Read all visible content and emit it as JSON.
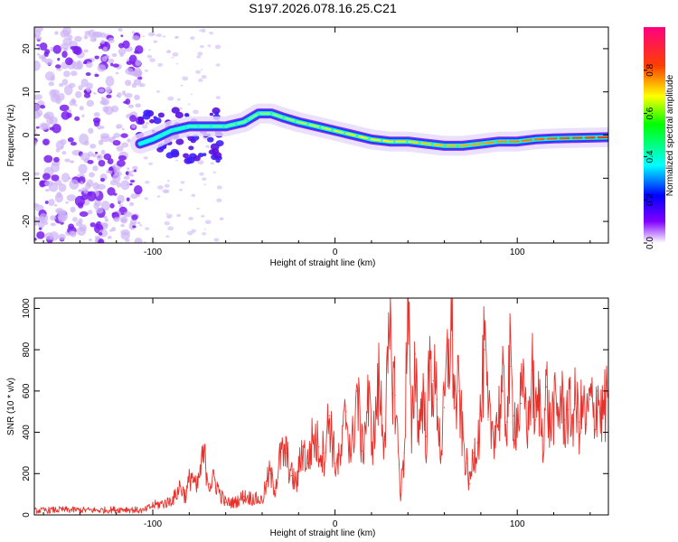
{
  "chart_data": [
    {
      "type": "heatmap",
      "title": "S197.2026.078.16.25.C21",
      "xlabel": "Height of straight line (km)",
      "ylabel": "Frequency (Hz)",
      "xlim": [
        -165,
        150
      ],
      "ylim": [
        -25,
        25
      ],
      "x_ticks": [
        -100,
        0,
        100
      ],
      "x_tick_labels": [
        "-100",
        "0",
        "100"
      ],
      "y_ticks": [
        -20,
        -10,
        0,
        10,
        20
      ],
      "y_tick_labels": [
        "-20",
        "-10",
        "0",
        "10",
        "20"
      ],
      "noise_region_x": [
        -165,
        -107
      ],
      "noisy_region_x": [
        -107,
        -62
      ],
      "ridge": [
        {
          "x": -107,
          "y": -2
        },
        {
          "x": -100,
          "y": -1
        },
        {
          "x": -90,
          "y": 1
        },
        {
          "x": -80,
          "y": 2
        },
        {
          "x": -70,
          "y": 2
        },
        {
          "x": -60,
          "y": 2
        },
        {
          "x": -50,
          "y": 3
        },
        {
          "x": -42,
          "y": 5
        },
        {
          "x": -35,
          "y": 5
        },
        {
          "x": -28,
          "y": 4
        },
        {
          "x": -20,
          "y": 3
        },
        {
          "x": -10,
          "y": 2
        },
        {
          "x": 0,
          "y": 1
        },
        {
          "x": 10,
          "y": 0
        },
        {
          "x": 20,
          "y": -1
        },
        {
          "x": 30,
          "y": -1.5
        },
        {
          "x": 40,
          "y": -1.5
        },
        {
          "x": 50,
          "y": -2
        },
        {
          "x": 60,
          "y": -2.5
        },
        {
          "x": 70,
          "y": -2.5
        },
        {
          "x": 80,
          "y": -2
        },
        {
          "x": 90,
          "y": -1.5
        },
        {
          "x": 100,
          "y": -1.5
        },
        {
          "x": 110,
          "y": -1
        },
        {
          "x": 120,
          "y": -0.8
        },
        {
          "x": 130,
          "y": -0.7
        },
        {
          "x": 140,
          "y": -0.6
        },
        {
          "x": 150,
          "y": -0.5
        }
      ],
      "colorbar": {
        "label": "Normalized spectral amplitude",
        "range": [
          0,
          1
        ],
        "ticks": [
          0,
          0.2,
          0.4,
          0.6,
          0.8
        ],
        "tick_labels": [
          "0.0",
          "0.2",
          "0.4",
          "0.6",
          "0.8"
        ]
      }
    },
    {
      "type": "line",
      "xlabel": "Height of straight line (km)",
      "ylabel": "SNR (10 * v/v)",
      "xlim": [
        -165,
        150
      ],
      "ylim": [
        0,
        1050
      ],
      "x_ticks": [
        -100,
        0,
        100
      ],
      "x_tick_labels": [
        "-100",
        "0",
        "100"
      ],
      "y_ticks": [
        0,
        200,
        400,
        600,
        800,
        1000
      ],
      "y_tick_labels": [
        "0",
        "200",
        "400",
        "600",
        "800",
        "1000"
      ],
      "line_color": "#e8302a",
      "series": [
        {
          "name": "SNR",
          "x": [
            -165,
            -150,
            -130,
            -115,
            -105,
            -100,
            -92,
            -88,
            -85,
            -82,
            -79,
            -76,
            -72,
            -69,
            -66,
            -63,
            -60,
            -55,
            -50,
            -45,
            -40,
            -36,
            -33,
            -30,
            -27,
            -24,
            -21,
            -18,
            -15,
            -12,
            -9,
            -6,
            -3,
            0,
            3,
            6,
            9,
            12,
            15,
            18,
            21,
            24,
            27,
            30,
            33,
            36,
            38,
            40,
            42,
            44,
            46,
            48,
            50,
            52,
            54,
            56,
            58,
            60,
            62,
            64,
            66,
            68,
            70,
            72,
            74,
            76,
            78,
            80,
            82,
            84,
            86,
            88,
            90,
            92,
            94,
            96,
            98,
            100,
            102,
            104,
            106,
            108,
            110,
            112,
            114,
            116,
            118,
            120,
            122,
            124,
            126,
            128,
            130,
            132,
            134,
            136,
            138,
            140,
            142,
            144,
            146,
            148,
            150
          ],
          "values": [
            20,
            25,
            22,
            28,
            20,
            45,
            60,
            85,
            140,
            90,
            200,
            120,
            290,
            150,
            170,
            100,
            60,
            60,
            90,
            80,
            70,
            200,
            130,
            280,
            300,
            190,
            150,
            330,
            250,
            380,
            330,
            300,
            480,
            250,
            260,
            500,
            290,
            600,
            310,
            550,
            350,
            630,
            380,
            820,
            580,
            100,
            300,
            1050,
            350,
            780,
            400,
            600,
            380,
            700,
            650,
            560,
            300,
            520,
            760,
            910,
            520,
            600,
            370,
            250,
            150,
            300,
            350,
            480,
            800,
            460,
            420,
            430,
            500,
            600,
            450,
            720,
            480,
            460,
            540,
            580,
            420,
            700,
            460,
            560,
            380,
            620,
            420,
            520,
            480,
            560,
            460,
            510,
            470,
            540,
            450,
            520,
            440,
            560,
            470,
            600,
            480,
            520,
            580
          ]
        }
      ]
    }
  ]
}
